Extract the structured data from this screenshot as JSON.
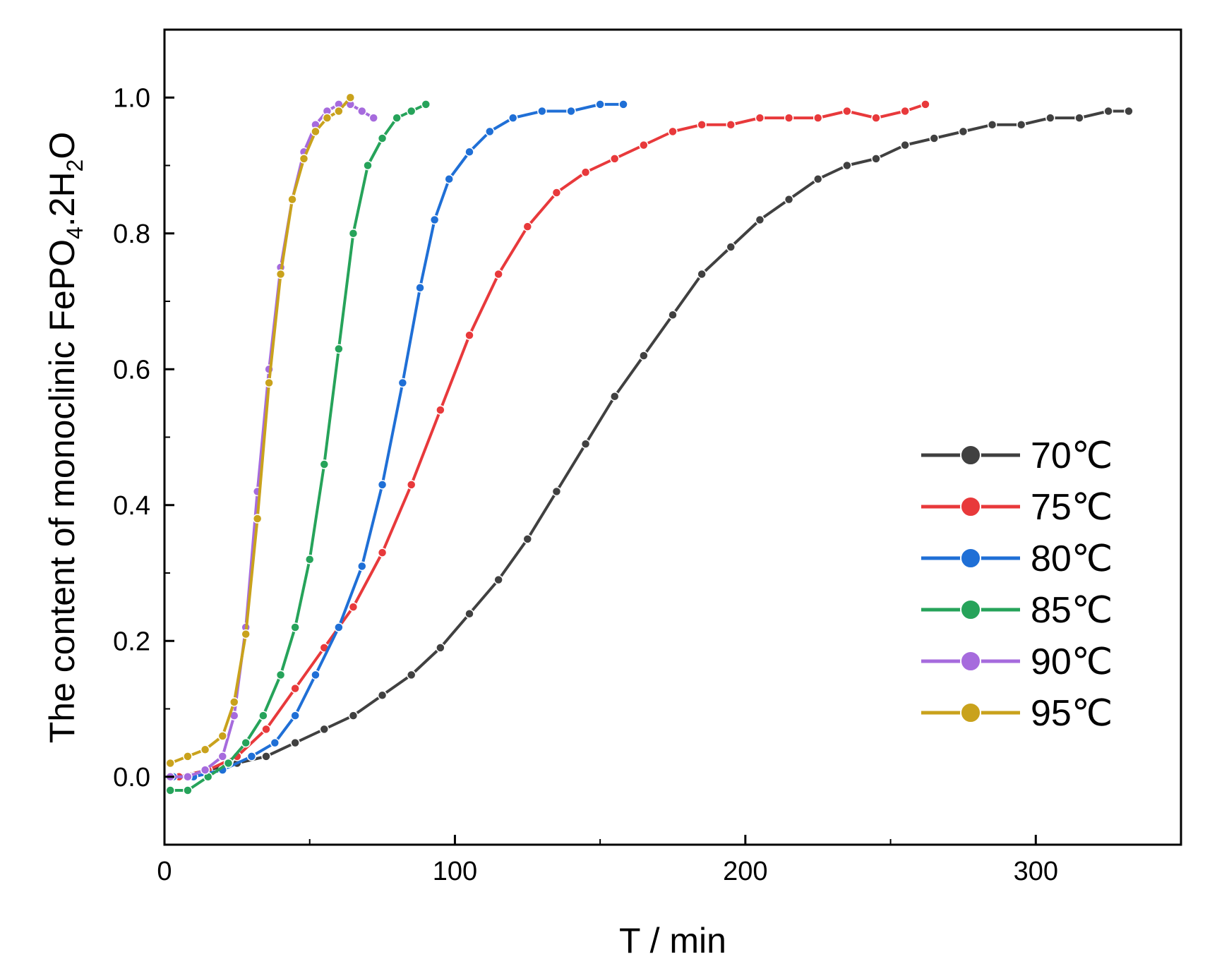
{
  "chart_data": {
    "type": "scatter",
    "title": "",
    "xlabel": "T / min",
    "ylabel": "The content of monoclinic FePO4.2H2O",
    "ylabel_parts": {
      "prefix": "The content of monoclinic FePO",
      "sub1": "4",
      "mid": ".2H",
      "sub2": "2",
      "suffix": "O"
    },
    "xlim": [
      0,
      350
    ],
    "ylim": [
      -0.1,
      1.1
    ],
    "xticks": [
      0,
      100,
      200,
      300
    ],
    "xtick_labels": [
      "0",
      "100",
      "200",
      "300"
    ],
    "yticks": [
      0.0,
      0.2,
      0.4,
      0.6,
      0.8,
      1.0
    ],
    "ytick_labels": [
      "0.0",
      "0.2",
      "0.4",
      "0.6",
      "0.8",
      "1.0"
    ],
    "grid": false,
    "legend_position": "lower-right",
    "series": [
      {
        "name": "70℃",
        "color": "#404040",
        "x": [
          5,
          15,
          25,
          35,
          45,
          55,
          65,
          75,
          85,
          95,
          105,
          115,
          125,
          135,
          145,
          155,
          165,
          175,
          185,
          195,
          205,
          215,
          225,
          235,
          245,
          255,
          265,
          275,
          285,
          295,
          305,
          315,
          325,
          332
        ],
        "y": [
          0.0,
          0.01,
          0.02,
          0.03,
          0.05,
          0.07,
          0.09,
          0.12,
          0.15,
          0.19,
          0.24,
          0.29,
          0.35,
          0.42,
          0.49,
          0.56,
          0.62,
          0.68,
          0.74,
          0.78,
          0.82,
          0.85,
          0.88,
          0.9,
          0.91,
          0.93,
          0.94,
          0.95,
          0.96,
          0.96,
          0.97,
          0.97,
          0.98,
          0.98
        ]
      },
      {
        "name": "75℃",
        "color": "#e8393b",
        "x": [
          5,
          15,
          25,
          35,
          45,
          55,
          65,
          75,
          85,
          95,
          105,
          115,
          125,
          135,
          145,
          155,
          165,
          175,
          185,
          195,
          205,
          215,
          225,
          235,
          245,
          255,
          262
        ],
        "y": [
          0.0,
          0.01,
          0.03,
          0.07,
          0.13,
          0.19,
          0.25,
          0.33,
          0.43,
          0.54,
          0.65,
          0.74,
          0.81,
          0.86,
          0.89,
          0.91,
          0.93,
          0.95,
          0.96,
          0.96,
          0.97,
          0.97,
          0.97,
          0.98,
          0.97,
          0.98,
          0.99
        ]
      },
      {
        "name": "80℃",
        "color": "#1f6fd6",
        "x": [
          3,
          10,
          20,
          30,
          38,
          45,
          52,
          60,
          68,
          75,
          82,
          88,
          93,
          98,
          105,
          112,
          120,
          130,
          140,
          150,
          158
        ],
        "y": [
          0.0,
          0.0,
          0.01,
          0.03,
          0.05,
          0.09,
          0.15,
          0.22,
          0.31,
          0.43,
          0.58,
          0.72,
          0.82,
          0.88,
          0.92,
          0.95,
          0.97,
          0.98,
          0.98,
          0.99,
          0.99
        ]
      },
      {
        "name": "85℃",
        "color": "#26a35a",
        "x": [
          2,
          8,
          15,
          22,
          28,
          34,
          40,
          45,
          50,
          55,
          60,
          65,
          70,
          75,
          80,
          85,
          90
        ],
        "y": [
          -0.02,
          -0.02,
          0.0,
          0.02,
          0.05,
          0.09,
          0.15,
          0.22,
          0.32,
          0.46,
          0.63,
          0.8,
          0.9,
          0.94,
          0.97,
          0.98,
          0.99
        ]
      },
      {
        "name": "90℃",
        "color": "#a66bdd",
        "x": [
          2,
          8,
          14,
          20,
          24,
          28,
          32,
          36,
          40,
          44,
          48,
          52,
          56,
          60,
          64,
          68,
          72
        ],
        "y": [
          0.0,
          0.0,
          0.01,
          0.03,
          0.09,
          0.22,
          0.42,
          0.6,
          0.75,
          0.85,
          0.92,
          0.96,
          0.98,
          0.99,
          0.99,
          0.98,
          0.97
        ]
      },
      {
        "name": "95℃",
        "color": "#c9a21c",
        "x": [
          2,
          8,
          14,
          20,
          24,
          28,
          32,
          36,
          40,
          44,
          48,
          52,
          56,
          60,
          64
        ],
        "y": [
          0.02,
          0.03,
          0.04,
          0.06,
          0.11,
          0.21,
          0.38,
          0.58,
          0.74,
          0.85,
          0.91,
          0.95,
          0.97,
          0.98,
          1.0
        ]
      }
    ]
  }
}
